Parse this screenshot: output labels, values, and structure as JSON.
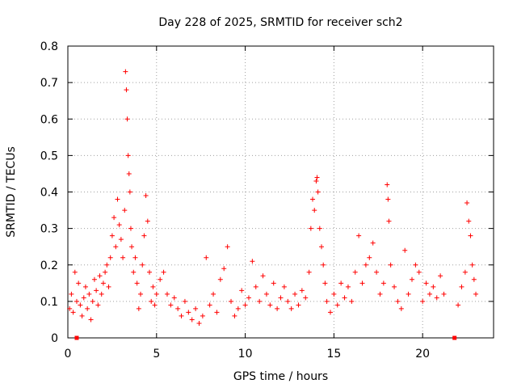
{
  "chart_data": {
    "type": "scatter",
    "title": "Day 228 of 2025, SRMTID for receiver sch2",
    "xlabel": "GPS time / hours",
    "ylabel": "SRMTID / TECUs",
    "xlim": [
      0,
      24
    ],
    "ylim": [
      0,
      0.8
    ],
    "xticks": [
      0,
      5,
      10,
      15,
      20
    ],
    "xtick_labels": [
      "0",
      "5",
      "10",
      "15",
      "20"
    ],
    "yticks": [
      0,
      0.1,
      0.2,
      0.3,
      0.4,
      0.5,
      0.6,
      0.7,
      0.8
    ],
    "ytick_labels": [
      "0",
      "0.1",
      "0.2",
      "0.3",
      "0.4",
      "0.5",
      "0.6",
      "0.7",
      "0.8"
    ],
    "grid": true,
    "marker": "plus",
    "color": "#ff0000",
    "series": [
      {
        "name": "SRMTID",
        "points": [
          [
            0.1,
            0.08
          ],
          [
            0.2,
            0.12
          ],
          [
            0.3,
            0.07
          ],
          [
            0.4,
            0.18
          ],
          [
            0.5,
            0.1
          ],
          [
            0.6,
            0.15
          ],
          [
            0.7,
            0.09
          ],
          [
            0.8,
            0.06
          ],
          [
            0.9,
            0.11
          ],
          [
            1.0,
            0.14
          ],
          [
            1.1,
            0.08
          ],
          [
            1.2,
            0.12
          ],
          [
            1.3,
            0.05
          ],
          [
            1.4,
            0.1
          ],
          [
            1.5,
            0.16
          ],
          [
            1.6,
            0.13
          ],
          [
            1.7,
            0.09
          ],
          [
            1.8,
            0.17
          ],
          [
            1.9,
            0.12
          ],
          [
            2.0,
            0.15
          ],
          [
            2.1,
            0.18
          ],
          [
            2.2,
            0.2
          ],
          [
            2.3,
            0.14
          ],
          [
            2.4,
            0.22
          ],
          [
            2.5,
            0.28
          ],
          [
            2.6,
            0.33
          ],
          [
            2.7,
            0.25
          ],
          [
            2.8,
            0.38
          ],
          [
            2.9,
            0.31
          ],
          [
            3.0,
            0.27
          ],
          [
            3.1,
            0.22
          ],
          [
            3.2,
            0.35
          ],
          [
            3.25,
            0.73
          ],
          [
            3.3,
            0.68
          ],
          [
            3.35,
            0.6
          ],
          [
            3.4,
            0.5
          ],
          [
            3.45,
            0.45
          ],
          [
            3.5,
            0.4
          ],
          [
            3.55,
            0.3
          ],
          [
            3.6,
            0.25
          ],
          [
            3.7,
            0.18
          ],
          [
            3.8,
            0.22
          ],
          [
            3.9,
            0.15
          ],
          [
            4.0,
            0.08
          ],
          [
            4.1,
            0.12
          ],
          [
            4.2,
            0.2
          ],
          [
            4.3,
            0.28
          ],
          [
            4.4,
            0.39
          ],
          [
            4.5,
            0.32
          ],
          [
            4.6,
            0.18
          ],
          [
            4.7,
            0.1
          ],
          [
            4.8,
            0.14
          ],
          [
            4.9,
            0.09
          ],
          [
            5.0,
            0.12
          ],
          [
            5.2,
            0.16
          ],
          [
            5.4,
            0.18
          ],
          [
            5.6,
            0.12
          ],
          [
            5.8,
            0.09
          ],
          [
            6.0,
            0.11
          ],
          [
            6.2,
            0.08
          ],
          [
            6.4,
            0.06
          ],
          [
            6.6,
            0.1
          ],
          [
            6.8,
            0.07
          ],
          [
            7.0,
            0.05
          ],
          [
            7.2,
            0.08
          ],
          [
            7.4,
            0.04
          ],
          [
            7.6,
            0.06
          ],
          [
            7.8,
            0.22
          ],
          [
            8.0,
            0.09
          ],
          [
            8.2,
            0.12
          ],
          [
            8.4,
            0.07
          ],
          [
            8.6,
            0.16
          ],
          [
            8.8,
            0.19
          ],
          [
            9.0,
            0.25
          ],
          [
            9.2,
            0.1
          ],
          [
            9.4,
            0.06
          ],
          [
            9.6,
            0.08
          ],
          [
            9.8,
            0.13
          ],
          [
            10.0,
            0.09
          ],
          [
            10.2,
            0.11
          ],
          [
            10.4,
            0.21
          ],
          [
            10.6,
            0.14
          ],
          [
            10.8,
            0.1
          ],
          [
            11.0,
            0.17
          ],
          [
            11.2,
            0.12
          ],
          [
            11.4,
            0.09
          ],
          [
            11.6,
            0.15
          ],
          [
            11.8,
            0.08
          ],
          [
            12.0,
            0.11
          ],
          [
            12.2,
            0.14
          ],
          [
            12.4,
            0.1
          ],
          [
            12.6,
            0.08
          ],
          [
            12.8,
            0.12
          ],
          [
            13.0,
            0.09
          ],
          [
            13.2,
            0.13
          ],
          [
            13.4,
            0.11
          ],
          [
            13.6,
            0.18
          ],
          [
            13.7,
            0.3
          ],
          [
            13.8,
            0.38
          ],
          [
            13.9,
            0.35
          ],
          [
            14.0,
            0.43
          ],
          [
            14.05,
            0.44
          ],
          [
            14.1,
            0.4
          ],
          [
            14.2,
            0.3
          ],
          [
            14.3,
            0.25
          ],
          [
            14.4,
            0.2
          ],
          [
            14.5,
            0.15
          ],
          [
            14.6,
            0.1
          ],
          [
            14.8,
            0.07
          ],
          [
            15.0,
            0.12
          ],
          [
            15.2,
            0.09
          ],
          [
            15.4,
            0.15
          ],
          [
            15.6,
            0.11
          ],
          [
            15.8,
            0.14
          ],
          [
            16.0,
            0.1
          ],
          [
            16.2,
            0.18
          ],
          [
            16.4,
            0.28
          ],
          [
            16.6,
            0.15
          ],
          [
            16.8,
            0.2
          ],
          [
            17.0,
            0.22
          ],
          [
            17.2,
            0.26
          ],
          [
            17.4,
            0.18
          ],
          [
            17.6,
            0.12
          ],
          [
            17.8,
            0.15
          ],
          [
            18.0,
            0.42
          ],
          [
            18.05,
            0.38
          ],
          [
            18.1,
            0.32
          ],
          [
            18.2,
            0.2
          ],
          [
            18.4,
            0.14
          ],
          [
            18.6,
            0.1
          ],
          [
            18.8,
            0.08
          ],
          [
            19.0,
            0.24
          ],
          [
            19.2,
            0.12
          ],
          [
            19.4,
            0.16
          ],
          [
            19.6,
            0.2
          ],
          [
            19.8,
            0.18
          ],
          [
            20.0,
            0.1
          ],
          [
            20.2,
            0.15
          ],
          [
            20.4,
            0.12
          ],
          [
            20.6,
            0.14
          ],
          [
            20.8,
            0.11
          ],
          [
            21.0,
            0.17
          ],
          [
            21.2,
            0.12
          ],
          [
            22.0,
            0.09
          ],
          [
            22.2,
            0.14
          ],
          [
            22.4,
            0.18
          ],
          [
            22.5,
            0.37
          ],
          [
            22.6,
            0.32
          ],
          [
            22.7,
            0.28
          ],
          [
            22.8,
            0.2
          ],
          [
            22.9,
            0.16
          ],
          [
            23.0,
            0.12
          ]
        ]
      }
    ],
    "gap_markers": {
      "points": [
        [
          0.5,
          0
        ],
        [
          21.8,
          0
        ]
      ]
    }
  }
}
